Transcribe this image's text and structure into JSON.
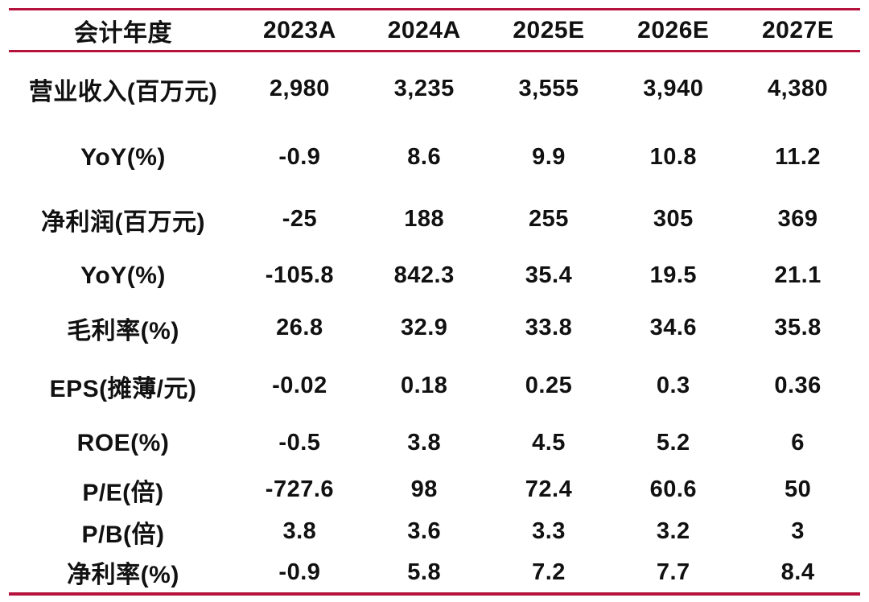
{
  "accent_color": "#b5123c",
  "text_color": "#111111",
  "table": {
    "header": {
      "label": "会计年度",
      "years": [
        "2023A",
        "2024A",
        "2025E",
        "2026E",
        "2027E"
      ]
    },
    "rows": [
      {
        "label": "营业收入(百万元)",
        "values": [
          "2,980",
          "3,235",
          "3,555",
          "3,940",
          "4,380"
        ]
      },
      {
        "label": "YoY(%)",
        "values": [
          "-0.9",
          "8.6",
          "9.9",
          "10.8",
          "11.2"
        ]
      },
      {
        "label": "净利润(百万元)",
        "values": [
          "-25",
          "188",
          "255",
          "305",
          "369"
        ]
      },
      {
        "label": "YoY(%)",
        "values": [
          "-105.8",
          "842.3",
          "35.4",
          "19.5",
          "21.1"
        ]
      },
      {
        "label": "毛利率(%)",
        "values": [
          "26.8",
          "32.9",
          "33.8",
          "34.6",
          "35.8"
        ]
      },
      {
        "label": "EPS(摊薄/元)",
        "values": [
          "-0.02",
          "0.18",
          "0.25",
          "0.3",
          "0.36"
        ]
      },
      {
        "label": "ROE(%)",
        "values": [
          "-0.5",
          "3.8",
          "4.5",
          "5.2",
          "6"
        ]
      },
      {
        "label": "P/E(倍)",
        "values": [
          "-727.6",
          "98",
          "72.4",
          "60.6",
          "50"
        ]
      },
      {
        "label": "P/B(倍)",
        "values": [
          "3.8",
          "3.6",
          "3.3",
          "3.2",
          "3"
        ]
      },
      {
        "label": "净利率(%)",
        "values": [
          "-0.9",
          "5.8",
          "7.2",
          "7.7",
          "8.4"
        ]
      }
    ]
  }
}
